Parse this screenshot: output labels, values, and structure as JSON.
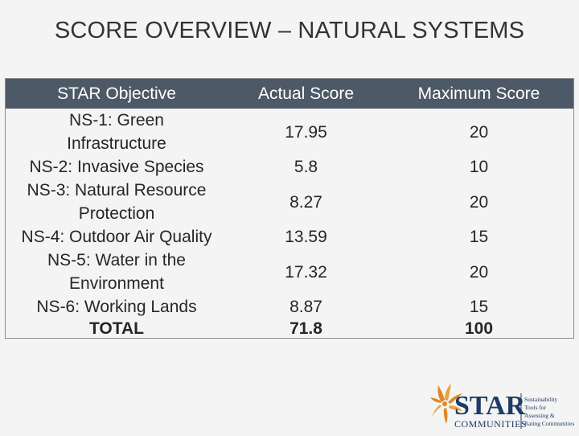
{
  "title": "SCORE OVERVIEW – NATURAL SYSTEMS",
  "table": {
    "headers": [
      "STAR Objective",
      "Actual Score",
      "Maximum Score"
    ],
    "rows": [
      {
        "objective": "NS-1: Green Infrastructure",
        "actual": "17.95",
        "maximum": "20"
      },
      {
        "objective": "NS-2: Invasive Species",
        "actual": "5.8",
        "maximum": "10"
      },
      {
        "objective": "NS-3: Natural Resource Protection",
        "actual": "8.27",
        "maximum": "20"
      },
      {
        "objective": "NS-4: Outdoor Air Quality",
        "actual": "13.59",
        "maximum": "15"
      },
      {
        "objective": "NS-5: Water in the Environment",
        "actual": "17.32",
        "maximum": "20"
      },
      {
        "objective": "NS-6: Working Lands",
        "actual": "8.87",
        "maximum": "15"
      },
      {
        "objective": "TOTAL",
        "actual": "71.8",
        "maximum": "100"
      }
    ]
  },
  "logo": {
    "wordmark": "STAR",
    "subtitle": "COMMUNITIES",
    "tagline_lines": [
      "Sustainability",
      "Tools for",
      "Assessing &",
      "Rating Communities"
    ]
  },
  "colors": {
    "header_bg": "#4d5966",
    "logo_orange": "#e0862a",
    "logo_navy": "#1f3b66"
  }
}
